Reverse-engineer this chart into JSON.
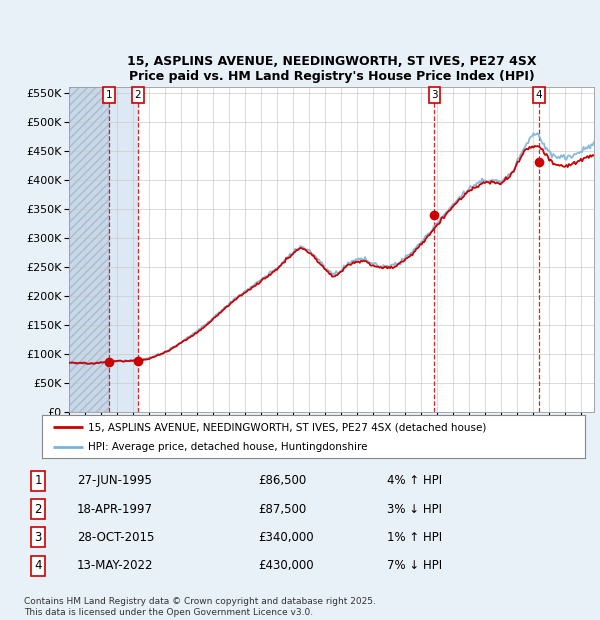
{
  "title1": "15, ASPLINS AVENUE, NEEDINGWORTH, ST IVES, PE27 4SX",
  "title2": "Price paid vs. HM Land Registry's House Price Index (HPI)",
  "ylim": [
    0,
    560000
  ],
  "yticks": [
    0,
    50000,
    100000,
    150000,
    200000,
    250000,
    300000,
    350000,
    400000,
    450000,
    500000,
    550000
  ],
  "ytick_labels": [
    "£0",
    "£50K",
    "£100K",
    "£150K",
    "£200K",
    "£250K",
    "£300K",
    "£350K",
    "£400K",
    "£450K",
    "£500K",
    "£550K"
  ],
  "hpi_color": "#7ab3d9",
  "price_color": "#cc0000",
  "dot_color": "#cc0000",
  "sale_dates": [
    1995.49,
    1997.3,
    2015.83,
    2022.37
  ],
  "sale_prices": [
    86500,
    87500,
    340000,
    430000
  ],
  "sale_labels": [
    "1",
    "2",
    "3",
    "4"
  ],
  "sale_info": [
    {
      "num": "1",
      "date": "27-JUN-1995",
      "price": "£86,500",
      "hpi": "4% ↑ HPI"
    },
    {
      "num": "2",
      "date": "18-APR-1997",
      "price": "£87,500",
      "hpi": "3% ↓ HPI"
    },
    {
      "num": "3",
      "date": "28-OCT-2015",
      "price": "£340,000",
      "hpi": "1% ↑ HPI"
    },
    {
      "num": "4",
      "date": "13-MAY-2022",
      "price": "£430,000",
      "hpi": "7% ↓ HPI"
    }
  ],
  "legend_label_red": "15, ASPLINS AVENUE, NEEDINGWORTH, ST IVES, PE27 4SX (detached house)",
  "legend_label_blue": "HPI: Average price, detached house, Huntingdonshire",
  "footer": "Contains HM Land Registry data © Crown copyright and database right 2025.\nThis data is licensed under the Open Government Licence v3.0.",
  "bg_color": "#e8f0f8",
  "plot_bg": "#ffffff",
  "hatch_color": "#c8d8e8",
  "highlight_color": "#dce9f5",
  "xlim_start": 1993.0,
  "xlim_end": 2025.8,
  "hatch_region_start": 1993.0,
  "hatch_region_end": 1995.49,
  "blue_region_start": 1995.49,
  "blue_region_end": 1997.3
}
